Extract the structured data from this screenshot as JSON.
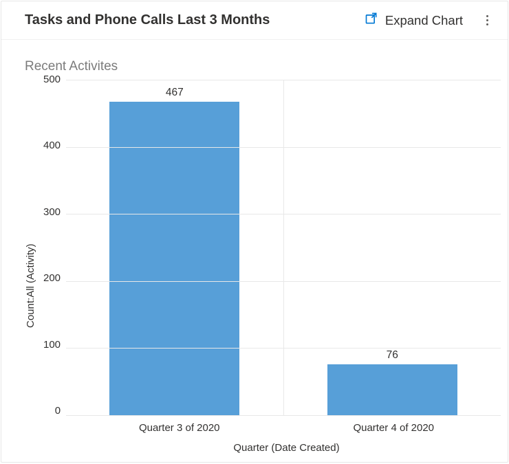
{
  "header": {
    "title": "Tasks and Phone Calls Last 3 Months",
    "expand_label": "Expand Chart"
  },
  "chart": {
    "subtitle": "Recent Activites",
    "type": "bar",
    "y_axis_label": "Count:All (Activity)",
    "x_axis_label": "Quarter (Date Created)",
    "ylim": [
      0,
      500
    ],
    "ytick_step": 100,
    "yticks": [
      "500",
      "400",
      "300",
      "200",
      "100",
      "0"
    ],
    "categories": [
      "Quarter 3 of 2020",
      "Quarter 4 of 2020"
    ],
    "values": [
      467,
      76
    ],
    "bar_color": "#579fd8",
    "bar_width_pct": 60,
    "grid_color": "#e8e8e8",
    "background_color": "#ffffff",
    "title_fontsize": 20,
    "subtitle_fontsize": 19,
    "axis_fontsize": 15,
    "value_fontsize": 15.5,
    "text_color": "#323130",
    "subtitle_color": "#7b7b7b"
  }
}
